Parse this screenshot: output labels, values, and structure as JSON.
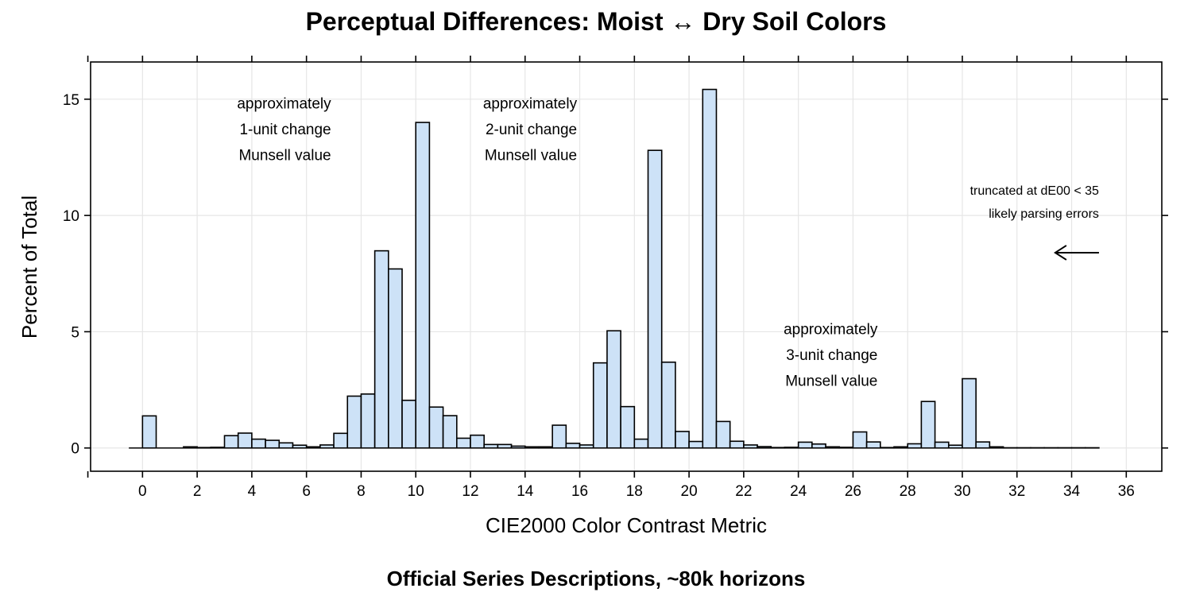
{
  "chart_data": {
    "type": "bar",
    "title": "Perceptual Differences: Moist ↔ Dry Soil Colors",
    "subtitle": "Official Series Descriptions, ~80k horizons",
    "xlabel": "CIE2000 Color Contrast Metric",
    "ylabel": "Percent of Total",
    "xlim": [
      -1.9,
      37.3
    ],
    "ylim": [
      -1.0,
      16.6
    ],
    "x_ticks": [
      0,
      2,
      4,
      6,
      8,
      10,
      12,
      14,
      16,
      18,
      20,
      22,
      24,
      26,
      28,
      30,
      32,
      34,
      36
    ],
    "x_tick_labels": [
      "0",
      "2",
      "4",
      "6",
      "8",
      "10",
      "12",
      "14",
      "16",
      "18",
      "20",
      "22",
      "24",
      "26",
      "28",
      "30",
      "32",
      "34",
      "36"
    ],
    "y_ticks": [
      0,
      5,
      10,
      15
    ],
    "y_tick_labels": [
      "0",
      "5",
      "10",
      "15"
    ],
    "grid": true,
    "bin_width": 0.5,
    "bin_start": -0.5,
    "values": [
      0.0,
      1.38,
      0.0,
      0.0,
      0.05,
      0.02,
      0.03,
      0.53,
      0.64,
      0.38,
      0.33,
      0.22,
      0.12,
      0.05,
      0.13,
      0.63,
      2.23,
      2.32,
      8.48,
      7.7,
      2.05,
      14.0,
      1.76,
      1.39,
      0.42,
      0.55,
      0.15,
      0.15,
      0.08,
      0.05,
      0.05,
      0.98,
      0.2,
      0.13,
      3.66,
      5.04,
      1.78,
      0.38,
      12.8,
      3.69,
      0.71,
      0.28,
      15.42,
      1.14,
      0.29,
      0.13,
      0.06,
      0.02,
      0.03,
      0.25,
      0.17,
      0.05,
      0.03,
      0.69,
      0.26,
      0.02,
      0.05,
      0.18,
      2.0,
      0.25,
      0.12,
      2.98,
      0.26,
      0.05,
      0.01,
      0.01,
      0.01,
      0.01,
      0.01,
      0.01,
      0.01
    ],
    "annotations": [
      {
        "lines": [
          "approximately",
          "1-unit change",
          "Munsell value"
        ],
        "x": 6.9,
        "y": 14.6
      },
      {
        "lines": [
          "approximately",
          "2-unit change",
          "Munsell value"
        ],
        "x": 15.9,
        "y": 14.6
      },
      {
        "lines": [
          "approximately",
          "3-unit change",
          "Munsell value"
        ],
        "x": 26.9,
        "y": 4.9
      },
      {
        "lines": [
          "truncated at dE00 < 35",
          "likely parsing errors"
        ],
        "x": 35.0,
        "y": 10.9,
        "small": true
      }
    ],
    "arrow": {
      "x_from": 35.0,
      "x_to": 33.4,
      "y": 8.4,
      "glyph": "arrow-left-icon"
    },
    "bar_color": "#cde2f7",
    "bar_border_color": "#000000"
  }
}
